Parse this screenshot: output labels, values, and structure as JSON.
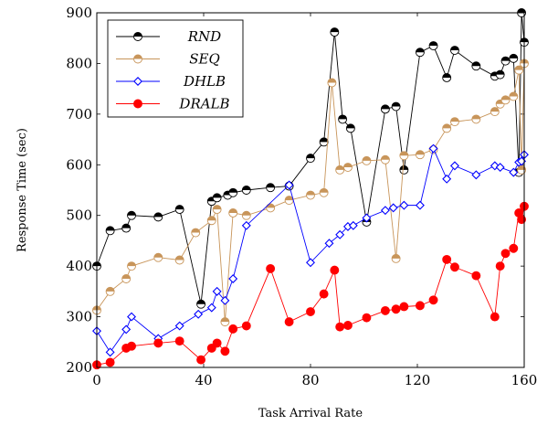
{
  "chart_data": {
    "type": "line",
    "xlabel": "Task Arrival Rate",
    "ylabel": "Response Time (sec)",
    "xlim": [
      0,
      160
    ],
    "ylim": [
      200,
      900
    ],
    "xticks": [
      0,
      40,
      80,
      120,
      160
    ],
    "yticks": [
      200,
      300,
      400,
      500,
      600,
      700,
      800,
      900
    ],
    "legend_position": "top-left",
    "series": [
      {
        "name": "RND",
        "color": "#000000",
        "marker": "half-filled-circle",
        "x": [
          0,
          5,
          11,
          13,
          23,
          31,
          39,
          43,
          45,
          49,
          51,
          56,
          65,
          72,
          80,
          85,
          89,
          92,
          95,
          101,
          108,
          112,
          115,
          121,
          126,
          131,
          134,
          142,
          149,
          151,
          153,
          156,
          158,
          159,
          160
        ],
        "y": [
          400,
          470,
          475,
          500,
          497,
          512,
          325,
          528,
          535,
          540,
          545,
          550,
          555,
          558,
          613,
          645,
          862,
          690,
          672,
          487,
          710,
          715,
          590,
          822,
          835,
          772,
          826,
          795,
          775,
          778,
          805,
          810,
          585,
          900,
          842
        ]
      },
      {
        "name": "SEQ",
        "color": "#c8955a",
        "marker": "half-filled-circle",
        "x": [
          0,
          5,
          11,
          13,
          23,
          31,
          37,
          43,
          45,
          48,
          51,
          56,
          65,
          72,
          80,
          85,
          88,
          91,
          94,
          101,
          108,
          112,
          115,
          121,
          126,
          131,
          134,
          142,
          149,
          151,
          153,
          156,
          158,
          159,
          160
        ],
        "y": [
          313,
          350,
          375,
          400,
          417,
          412,
          466,
          490,
          512,
          290,
          505,
          500,
          515,
          530,
          540,
          545,
          762,
          590,
          595,
          608,
          610,
          415,
          618,
          620,
          630,
          672,
          685,
          690,
          705,
          720,
          728,
          735,
          787,
          590,
          800
        ]
      },
      {
        "name": "DHLB",
        "color": "#0000ff",
        "marker": "diamond",
        "x": [
          0,
          5,
          11,
          13,
          23,
          31,
          38,
          43,
          45,
          48,
          51,
          56,
          72,
          80,
          87,
          91,
          94,
          96,
          101,
          108,
          111,
          115,
          121,
          126,
          131,
          134,
          142,
          149,
          151,
          156,
          158,
          159,
          160
        ],
        "y": [
          272,
          230,
          275,
          300,
          257,
          282,
          305,
          318,
          350,
          332,
          375,
          480,
          560,
          407,
          445,
          462,
          478,
          480,
          495,
          510,
          515,
          520,
          520,
          632,
          572,
          598,
          580,
          598,
          595,
          585,
          605,
          607,
          620
        ]
      },
      {
        "name": "DRALB",
        "color": "#ff0000",
        "marker": "circle",
        "x": [
          0,
          5,
          11,
          13,
          23,
          31,
          39,
          43,
          45,
          48,
          51,
          56,
          65,
          72,
          80,
          85,
          89,
          91,
          94,
          101,
          108,
          112,
          115,
          121,
          126,
          131,
          134,
          142,
          149,
          151,
          153,
          156,
          158,
          159,
          160
        ],
        "y": [
          205,
          210,
          238,
          242,
          248,
          252,
          215,
          238,
          248,
          232,
          276,
          282,
          395,
          290,
          310,
          345,
          392,
          280,
          283,
          298,
          312,
          315,
          320,
          322,
          333,
          413,
          398,
          381,
          300,
          400,
          425,
          435,
          505,
          492,
          518
        ]
      }
    ]
  }
}
